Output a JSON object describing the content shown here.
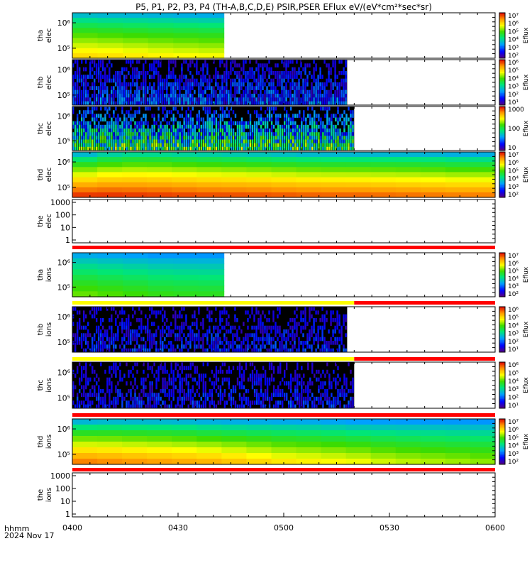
{
  "title": "P5, P1, P2, P3, P4 (TH-A,B,C,D,E) PSIR,PSER EFlux eV/(eV*cm²*sec*sr)",
  "footer": {
    "axis_label": "hhmm",
    "date": "2024 Nov 17"
  },
  "x_ticks": [
    "0400",
    "0430",
    "0500",
    "0530",
    "0600"
  ],
  "colorbar_label": "Eflux",
  "colors": {
    "quality_red": "#ff0000",
    "quality_yellow": "#ffff00",
    "frame": "#000000"
  },
  "chart_data": {
    "type": "heatmap",
    "x_range": [
      "0400",
      "0600"
    ],
    "x_unit": "hhmm (UT)",
    "panels": [
      {
        "id": "tha-elec",
        "ylabel": [
          "tha",
          "elec"
        ],
        "yscale": "log",
        "y_ticks": [
          "10⁵",
          "10⁶"
        ],
        "colorbar_ticks": [
          "10²",
          "10³",
          "10⁴",
          "10⁵",
          "10⁶",
          "10⁷"
        ],
        "colorbar_range_log10": [
          1.7,
          7.4
        ],
        "data_end": "0443",
        "texture": "smooth",
        "level_bottom": [
          6.2,
          6.15,
          6.1,
          6.0,
          5.95,
          5.9,
          5.85
        ],
        "level_top": [
          3.4,
          3.35,
          3.3,
          3.3,
          3.25,
          3.2,
          3.2
        ],
        "rows": 9
      },
      {
        "id": "thb-elec",
        "ylabel": [
          "thb",
          "elec"
        ],
        "yscale": "log",
        "y_ticks": [
          "10⁵",
          "10⁶"
        ],
        "colorbar_ticks": [
          "10¹",
          "10²",
          "10³",
          "10⁴",
          "10⁵",
          "10⁶"
        ],
        "colorbar_range_log10": [
          0.3,
          6.3
        ],
        "data_end": "0518",
        "texture": "noise",
        "level_bottom": [
          1.6,
          1.6,
          1.6
        ],
        "level_top": [
          0.5,
          0.5,
          0.5
        ],
        "rows": 12
      },
      {
        "id": "thc-elec",
        "ylabel": [
          "thc",
          "elec"
        ],
        "yscale": "log",
        "y_ticks": [
          "10⁵",
          "10⁶"
        ],
        "colorbar_ticks": [
          "10",
          "100",
          "1000"
        ],
        "colorbar_range_log10": [
          0.3,
          3.7
        ],
        "data_end": "0520",
        "texture": "noise",
        "level_bottom": [
          2.2,
          2.2,
          2.2
        ],
        "level_top": [
          0.4,
          0.4,
          0.4
        ],
        "rows": 12
      },
      {
        "id": "thd-elec",
        "ylabel": [
          "thd",
          "elec"
        ],
        "yscale": "log",
        "y_ticks": [
          "10⁵",
          "10⁶"
        ],
        "colorbar_ticks": [
          "10²",
          "10³",
          "10⁴",
          "10⁵",
          "10⁶",
          "10⁷"
        ],
        "colorbar_range_log10": [
          1.7,
          7.4
        ],
        "data_end": "0600",
        "texture": "smooth",
        "level_bottom": [
          7.25,
          7.25,
          7.2,
          7.15,
          7.1,
          7.1,
          7.05,
          7.0,
          7.0,
          6.95,
          6.9,
          6.85,
          6.85
        ],
        "level_top": [
          3.0,
          3.5,
          3.7,
          3.6,
          3.5,
          3.4,
          3.3,
          3.2,
          3.2,
          3.2,
          3.2,
          3.1,
          3.1
        ],
        "rows": 9
      },
      {
        "id": "the-elec",
        "ylabel": [
          "the",
          "elec"
        ],
        "yscale": "log",
        "y_ticks": [
          "1",
          "10",
          "100",
          "1000"
        ],
        "empty": true
      },
      {
        "id": "tha-ions",
        "ylabel": [
          "tha",
          "ions"
        ],
        "yscale": "log",
        "y_ticks": [
          "10⁵",
          "10⁶"
        ],
        "colorbar_ticks": [
          "10²",
          "10³",
          "10⁴",
          "10⁵",
          "10⁶",
          "10⁷"
        ],
        "colorbar_range_log10": [
          1.7,
          7.4
        ],
        "data_end": "0443",
        "texture": "smooth",
        "level_bottom": [
          5.3,
          5.2,
          5.1,
          5.0,
          4.9,
          4.9,
          4.85
        ],
        "level_top": [
          3.3,
          3.2,
          3.2,
          3.1,
          3.1,
          3.1,
          3.1
        ],
        "rows": 8
      },
      {
        "id": "thb-ions",
        "ylabel": [
          "thb",
          "ions"
        ],
        "yscale": "log",
        "y_ticks": [
          "10⁵",
          "10⁶"
        ],
        "colorbar_ticks": [
          "10¹",
          "10²",
          "10³",
          "10⁴",
          "10⁵",
          "10⁶"
        ],
        "colorbar_range_log10": [
          0.3,
          6.3
        ],
        "data_end": "0518",
        "texture": "noise",
        "level_bottom": [
          1.1,
          1.1,
          1.1
        ],
        "level_top": [
          0.4,
          0.4,
          0.4
        ],
        "rows": 12
      },
      {
        "id": "thc-ions",
        "ylabel": [
          "thc",
          "ions"
        ],
        "yscale": "log",
        "y_ticks": [
          "10⁵",
          "10⁶"
        ],
        "colorbar_ticks": [
          "10¹",
          "10²",
          "10³",
          "10⁴",
          "10⁵",
          "10⁶"
        ],
        "colorbar_range_log10": [
          0.3,
          6.3
        ],
        "data_end": "0520",
        "texture": "noise",
        "level_bottom": [
          1.1,
          1.1,
          1.1
        ],
        "level_top": [
          0.4,
          0.4,
          0.4
        ],
        "rows": 12
      },
      {
        "id": "thd-ions",
        "ylabel": [
          "thd",
          "ions"
        ],
        "yscale": "log",
        "y_ticks": [
          "10⁵",
          "10⁶"
        ],
        "colorbar_ticks": [
          "10²",
          "10³",
          "10⁴",
          "10⁵",
          "10⁶",
          "10⁷"
        ],
        "colorbar_range_log10": [
          1.7,
          7.4
        ],
        "data_end": "0600",
        "texture": "smooth",
        "level_bottom": [
          6.9,
          6.8,
          6.7,
          6.6,
          6.5,
          6.3,
          6.1,
          6.0,
          5.9,
          5.7,
          5.6,
          5.5,
          5.4
        ],
        "level_top": [
          3.1,
          3.2,
          3.2,
          3.2,
          3.1,
          3.1,
          3.1,
          3.1,
          3.0,
          3.0,
          3.0,
          3.0,
          3.0
        ],
        "rows": 8
      },
      {
        "id": "the-ions",
        "ylabel": [
          "the",
          "ions"
        ],
        "yscale": "log",
        "y_ticks": [
          "1",
          "10",
          "100",
          "1000"
        ],
        "empty": true
      }
    ],
    "quality_bars": [
      {
        "after_panel": "the-elec",
        "segments": [
          {
            "from": "0400",
            "to": "0600",
            "color": "red"
          }
        ]
      },
      {
        "after_panel": "tha-ions",
        "segments": [
          {
            "from": "0400",
            "to": "0520",
            "color": "yellow"
          },
          {
            "from": "0520",
            "to": "0600",
            "color": "red"
          }
        ]
      },
      {
        "after_panel": "thb-ions",
        "segments": [
          {
            "from": "0400",
            "to": "0520",
            "color": "yellow"
          },
          {
            "from": "0520",
            "to": "0600",
            "color": "red"
          }
        ]
      },
      {
        "after_panel": "thc-ions",
        "segments": [
          {
            "from": "0400",
            "to": "0600",
            "color": "red"
          }
        ]
      },
      {
        "after_panel": "thd-ions",
        "segments": [
          {
            "from": "0400",
            "to": "0600",
            "color": "red"
          }
        ]
      }
    ]
  }
}
